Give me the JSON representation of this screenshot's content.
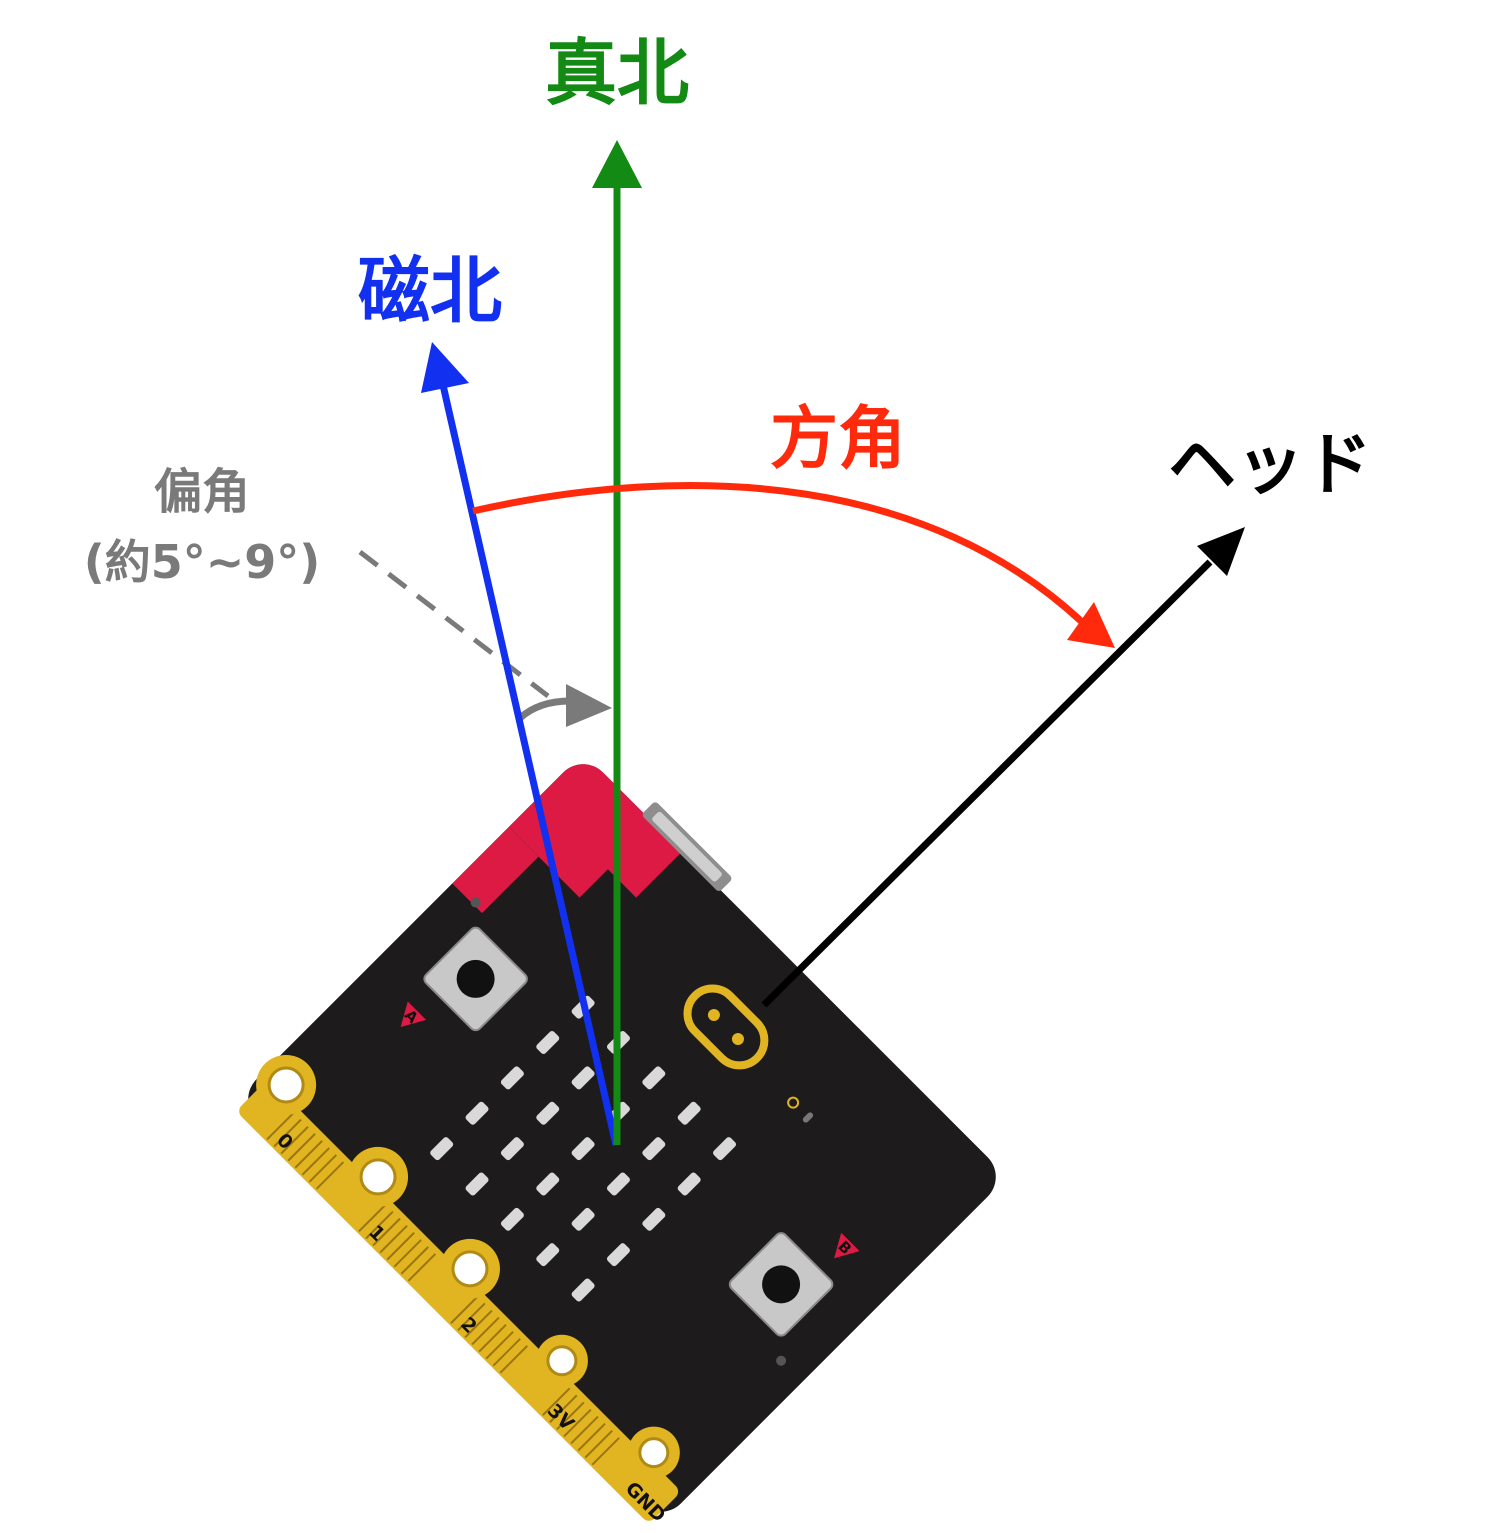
{
  "labels": {
    "true_north": "真北",
    "magnetic_north": "磁北",
    "azimuth": "方角",
    "heading": "ヘッド",
    "declination": "偏角",
    "declination_range": "(約5°~9°)"
  },
  "board": {
    "pins": [
      "0",
      "1",
      "2",
      "3V",
      "GND"
    ],
    "button_a": "A",
    "button_b": "B"
  },
  "colors": {
    "true_north": "#138a13",
    "magnetic_north": "#1230f0",
    "azimuth": "#ff2a0c",
    "heading": "#000000",
    "declination": "#7a7a7a",
    "board": "#1d1b1c",
    "board_accent": "#dc1a44",
    "gold": "#e1b421"
  }
}
